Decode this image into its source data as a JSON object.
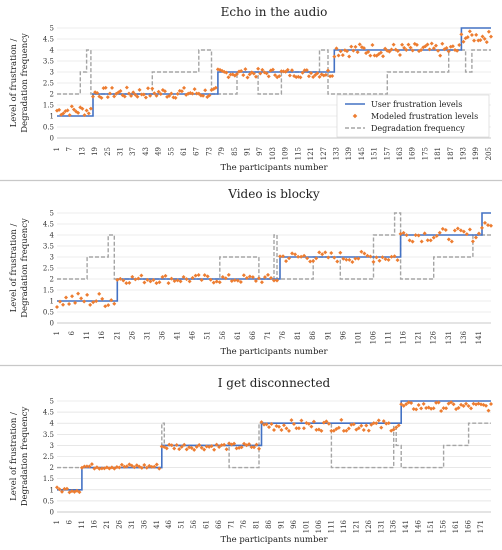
{
  "colors": {
    "user": "#4472c4",
    "modeled": "#ed7d31",
    "degradation": "#a5a5a5",
    "grid": "#d9d9d9",
    "separator": "#c8c8c8"
  },
  "chart_data": [
    {
      "type": "line",
      "title": "Echo in the audio",
      "xlabel": "The participants number",
      "ylabel": [
        "Level of frustration /",
        "Degradation frequency"
      ],
      "ylim": [
        0,
        5
      ],
      "yticks": [
        "0",
        "0.5",
        "1",
        "1.5",
        "2",
        "2.5",
        "3",
        "3.5",
        "4",
        "4.5",
        "5"
      ],
      "xlim": [
        1,
        206
      ],
      "xticks": [
        1,
        7,
        13,
        19,
        25,
        31,
        37,
        43,
        49,
        55,
        61,
        67,
        73,
        79,
        85,
        91,
        97,
        103,
        109,
        115,
        121,
        127,
        133,
        139,
        145,
        151,
        157,
        163,
        169,
        175,
        181,
        187,
        193,
        199,
        205
      ],
      "legend": {
        "placement": "right",
        "entries": [
          "User frustration levels",
          "Modeled frustration levels",
          "Degradation frequency"
        ]
      },
      "series": [
        {
          "name": "User frustration levels",
          "kind": "step",
          "points": [
            [
              1,
              1
            ],
            [
              18,
              1
            ],
            [
              18,
              2
            ],
            [
              77,
              2
            ],
            [
              77,
              3
            ],
            [
              132,
              3
            ],
            [
              132,
              4
            ],
            [
              192,
              4
            ],
            [
              192,
              5
            ],
            [
              206,
              5
            ]
          ]
        },
        {
          "name": "Degradation frequency",
          "kind": "step",
          "points": [
            [
              1,
              2
            ],
            [
              12,
              2
            ],
            [
              12,
              3
            ],
            [
              15,
              3
            ],
            [
              15,
              4
            ],
            [
              17,
              4
            ],
            [
              17,
              2
            ],
            [
              46,
              2
            ],
            [
              46,
              3
            ],
            [
              68,
              3
            ],
            [
              68,
              4
            ],
            [
              74,
              4
            ],
            [
              74,
              2
            ],
            [
              86,
              2
            ],
            [
              86,
              3
            ],
            [
              96,
              3
            ],
            [
              96,
              2
            ],
            [
              107,
              2
            ],
            [
              107,
              3
            ],
            [
              125,
              3
            ],
            [
              125,
              4
            ],
            [
              129,
              4
            ],
            [
              129,
              2
            ],
            [
              157,
              2
            ],
            [
              157,
              3
            ],
            [
              186,
              3
            ],
            [
              186,
              4
            ],
            [
              194,
              4
            ],
            [
              194,
              3
            ],
            [
              197,
              3
            ],
            [
              197,
              4
            ],
            [
              206,
              4
            ]
          ]
        },
        {
          "name": "Modeled frustration levels",
          "kind": "scatter",
          "segments": [
            {
              "x0": 1,
              "x1": 17,
              "level": 1,
              "mean": 1.25,
              "spread": 0.25
            },
            {
              "x0": 18,
              "x1": 76,
              "level": 2,
              "mean": 2.05,
              "spread": 0.25
            },
            {
              "x0": 77,
              "x1": 131,
              "level": 3,
              "mean": 2.95,
              "spread": 0.2
            },
            {
              "x0": 132,
              "x1": 191,
              "level": 4,
              "mean": 4.0,
              "spread": 0.3
            },
            {
              "x0": 192,
              "x1": 206,
              "level": 5,
              "mean": 4.6,
              "spread": 0.25
            }
          ]
        }
      ]
    },
    {
      "type": "line",
      "title": "Video is blocky",
      "xlabel": "The participants number",
      "ylabel": [
        "Level of frustration /",
        "Degradation frequency"
      ],
      "ylim": [
        0,
        5
      ],
      "yticks": [
        "0",
        "0.5",
        "1",
        "1.5",
        "2",
        "2.5",
        "3",
        "3.5",
        "4",
        "4.5",
        "5"
      ],
      "xlim": [
        1,
        145
      ],
      "xticks": [
        1,
        6,
        11,
        16,
        21,
        26,
        31,
        36,
        41,
        46,
        51,
        56,
        61,
        66,
        71,
        76,
        81,
        86,
        91,
        96,
        101,
        106,
        111,
        116,
        121,
        126,
        131,
        136,
        141
      ],
      "series": [
        {
          "name": "User frustration levels",
          "kind": "step",
          "points": [
            [
              1,
              1
            ],
            [
              21,
              1
            ],
            [
              21,
              2
            ],
            [
              75,
              2
            ],
            [
              75,
              3
            ],
            [
              115,
              3
            ],
            [
              115,
              4
            ],
            [
              142,
              4
            ],
            [
              142,
              5
            ],
            [
              145,
              5
            ]
          ]
        },
        {
          "name": "Degradation frequency",
          "kind": "step",
          "points": [
            [
              1,
              2
            ],
            [
              11,
              2
            ],
            [
              11,
              3
            ],
            [
              18,
              3
            ],
            [
              18,
              4
            ],
            [
              20,
              4
            ],
            [
              20,
              2
            ],
            [
              55,
              2
            ],
            [
              55,
              3
            ],
            [
              68,
              3
            ],
            [
              68,
              2
            ],
            [
              73,
              2
            ],
            [
              73,
              4
            ],
            [
              74,
              4
            ],
            [
              74,
              2
            ],
            [
              86,
              2
            ],
            [
              86,
              3
            ],
            [
              95,
              3
            ],
            [
              95,
              2
            ],
            [
              106,
              2
            ],
            [
              106,
              4
            ],
            [
              113,
              4
            ],
            [
              113,
              5
            ],
            [
              115,
              5
            ],
            [
              115,
              2
            ],
            [
              126,
              2
            ],
            [
              126,
              3
            ],
            [
              139,
              3
            ],
            [
              139,
              4
            ],
            [
              145,
              4
            ]
          ]
        },
        {
          "name": "Modeled frustration levels",
          "kind": "scatter",
          "segments": [
            {
              "x0": 1,
              "x1": 20,
              "level": 1,
              "mean": 1.05,
              "spread": 0.35
            },
            {
              "x0": 21,
              "x1": 74,
              "level": 2,
              "mean": 2.0,
              "spread": 0.2
            },
            {
              "x0": 75,
              "x1": 114,
              "level": 3,
              "mean": 3.0,
              "spread": 0.25
            },
            {
              "x0": 115,
              "x1": 141,
              "level": 4,
              "mean": 4.0,
              "spread": 0.3
            },
            {
              "x0": 142,
              "x1": 145,
              "level": 5,
              "mean": 4.5,
              "spread": 0.2
            }
          ]
        }
      ]
    },
    {
      "type": "line",
      "title": "I get disconnected",
      "xlabel": "The participants number",
      "ylabel": [
        "Level of frustration /",
        "Degradation frequency"
      ],
      "ylim": [
        0,
        5
      ],
      "yticks": [
        "0",
        "0.5",
        "1",
        "1.5",
        "2",
        "2.5",
        "3",
        "3.5",
        "4",
        "4.5",
        "5"
      ],
      "xlim": [
        1,
        175
      ],
      "xticks": [
        1,
        6,
        11,
        16,
        21,
        26,
        31,
        36,
        41,
        46,
        51,
        56,
        61,
        66,
        71,
        76,
        81,
        86,
        91,
        96,
        101,
        106,
        111,
        116,
        121,
        126,
        131,
        136,
        141,
        146,
        151,
        156,
        161,
        166,
        171
      ],
      "series": [
        {
          "name": "User frustration levels",
          "kind": "step",
          "points": [
            [
              1,
              1
            ],
            [
              11,
              1
            ],
            [
              11,
              2
            ],
            [
              43,
              2
            ],
            [
              43,
              3
            ],
            [
              83,
              3
            ],
            [
              83,
              4
            ],
            [
              139,
              4
            ],
            [
              139,
              5
            ],
            [
              175,
              5
            ]
          ]
        },
        {
          "name": "Degradation frequency",
          "kind": "step",
          "points": [
            [
              1,
              2
            ],
            [
              43,
              2
            ],
            [
              43,
              4
            ],
            [
              44,
              4
            ],
            [
              44,
              3
            ],
            [
              70,
              3
            ],
            [
              70,
              2
            ],
            [
              82,
              2
            ],
            [
              82,
              4
            ],
            [
              111,
              4
            ],
            [
              111,
              2
            ],
            [
              136,
              2
            ],
            [
              136,
              4
            ],
            [
              137,
              4
            ],
            [
              137,
              3
            ],
            [
              139,
              3
            ],
            [
              139,
              2
            ],
            [
              156,
              2
            ],
            [
              156,
              3
            ],
            [
              166,
              3
            ],
            [
              166,
              4
            ],
            [
              175,
              4
            ]
          ]
        },
        {
          "name": "Modeled frustration levels",
          "kind": "scatter",
          "segments": [
            {
              "x0": 1,
              "x1": 10,
              "level": 1,
              "mean": 1.0,
              "spread": 0.12
            },
            {
              "x0": 11,
              "x1": 42,
              "level": 2,
              "mean": 2.05,
              "spread": 0.12
            },
            {
              "x0": 43,
              "x1": 82,
              "level": 3,
              "mean": 2.95,
              "spread": 0.15
            },
            {
              "x0": 83,
              "x1": 138,
              "level": 4,
              "mean": 3.9,
              "spread": 0.25
            },
            {
              "x0": 139,
              "x1": 175,
              "level": 5,
              "mean": 4.75,
              "spread": 0.2
            }
          ]
        }
      ]
    }
  ]
}
